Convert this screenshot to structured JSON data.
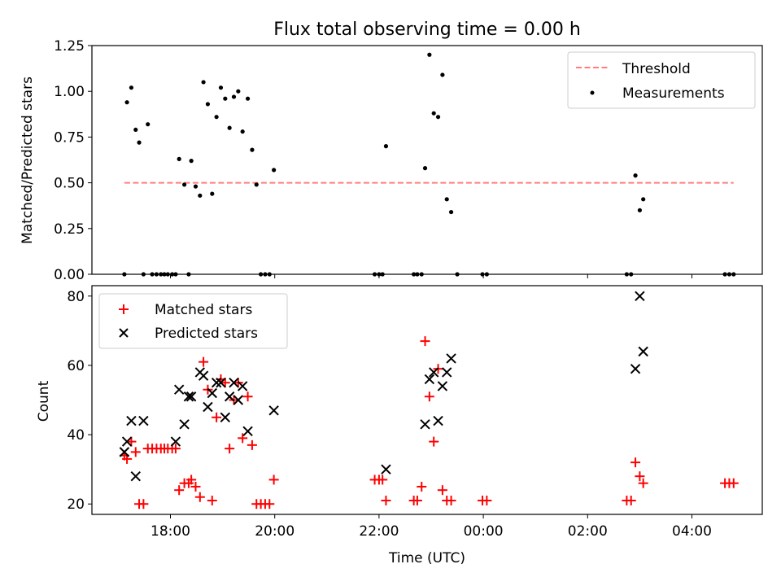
{
  "chart_data": [
    {
      "type": "scatter",
      "title": "Flux total observing time = 0.00 h",
      "xlabel": "",
      "ylabel": "Matched/Predicted stars",
      "ylim": [
        0,
        1.25
      ],
      "yticks": [
        0,
        0.25,
        0.5,
        0.75,
        1.0,
        1.25
      ],
      "ytick_labels": [
        "0.00",
        "0.25",
        "0.50",
        "0.75",
        "1.00",
        "1.25"
      ],
      "grid": false,
      "legend_position": "top-right",
      "threshold": {
        "name": "Threshold",
        "y": 0.5,
        "x_range": [
          "17:07",
          "23:59+4:52"
        ],
        "color": "#ff7f7f"
      },
      "series": [
        {
          "name": "Measurements",
          "color": "#000000",
          "points": [
            [
              "17:07",
              0.0
            ],
            [
              "17:10",
              0.94
            ],
            [
              "17:15",
              1.02
            ],
            [
              "17:20",
              0.79
            ],
            [
              "17:24",
              0.72
            ],
            [
              "17:29",
              0.0
            ],
            [
              "17:34",
              0.82
            ],
            [
              "17:39",
              0.0
            ],
            [
              "17:44",
              0.0
            ],
            [
              "17:49",
              0.0
            ],
            [
              "17:53",
              0.0
            ],
            [
              "17:57",
              0.0
            ],
            [
              "18:02",
              0.0
            ],
            [
              "18:06",
              0.0
            ],
            [
              "18:10",
              0.63
            ],
            [
              "18:16",
              0.49
            ],
            [
              "18:21",
              0.0
            ],
            [
              "18:24",
              0.62
            ],
            [
              "18:29",
              0.48
            ],
            [
              "18:34",
              0.43
            ],
            [
              "18:38",
              1.05
            ],
            [
              "18:43",
              0.93
            ],
            [
              "18:48",
              0.44
            ],
            [
              "18:53",
              0.86
            ],
            [
              "18:58",
              1.02
            ],
            [
              "19:03",
              0.96
            ],
            [
              "19:08",
              0.8
            ],
            [
              "19:13",
              0.97
            ],
            [
              "19:18",
              1.0
            ],
            [
              "19:23",
              0.78
            ],
            [
              "19:29",
              0.96
            ],
            [
              "19:34",
              0.68
            ],
            [
              "19:39",
              0.49
            ],
            [
              "19:44",
              0.0
            ],
            [
              "19:49",
              0.0
            ],
            [
              "19:54",
              0.0
            ],
            [
              "19:59",
              0.57
            ],
            [
              "21:55",
              0.0
            ],
            [
              "22:00",
              0.0
            ],
            [
              "22:04",
              0.0
            ],
            [
              "22:08",
              0.7
            ],
            [
              "22:40",
              0.0
            ],
            [
              "22:44",
              0.0
            ],
            [
              "22:49",
              0.0
            ],
            [
              "22:53",
              0.58
            ],
            [
              "22:58",
              1.2
            ],
            [
              "23:03",
              0.88
            ],
            [
              "23:08",
              0.86
            ],
            [
              "23:13",
              1.09
            ],
            [
              "23:18",
              0.41
            ],
            [
              "23:23",
              0.34
            ],
            [
              "23:30",
              0.0
            ],
            [
              "23:59",
              0.0
            ],
            [
              "24:04",
              0.0
            ],
            [
              "26:45",
              0.0
            ],
            [
              "26:50",
              0.0
            ],
            [
              "26:55",
              0.54
            ],
            [
              "27:00",
              0.35
            ],
            [
              "27:04",
              0.41
            ],
            [
              "28:38",
              0.0
            ],
            [
              "28:43",
              0.0
            ],
            [
              "28:48",
              0.0
            ]
          ]
        }
      ]
    },
    {
      "type": "scatter",
      "title": "",
      "xlabel": "Time (UTC)",
      "ylabel": "Count",
      "ylim": [
        17,
        83
      ],
      "yticks": [
        20,
        40,
        60,
        80
      ],
      "ytick_labels": [
        "20",
        "40",
        "60",
        "80"
      ],
      "grid": false,
      "legend_position": "top-left",
      "xticks": [
        "18:00",
        "20:00",
        "22:00",
        "24:00",
        "26:00",
        "28:00"
      ],
      "xtick_labels": [
        "18:00",
        "20:00",
        "22:00",
        "00:00",
        "02:00",
        "04:00"
      ],
      "series": [
        {
          "name": "Matched stars",
          "marker": "plus",
          "color": "#ff0000",
          "points": [
            [
              "17:07",
              34
            ],
            [
              "17:10",
              33
            ],
            [
              "17:15",
              38
            ],
            [
              "17:20",
              35
            ],
            [
              "17:24",
              20
            ],
            [
              "17:29",
              20
            ],
            [
              "17:34",
              36
            ],
            [
              "17:39",
              36
            ],
            [
              "17:44",
              36
            ],
            [
              "17:49",
              36
            ],
            [
              "17:53",
              36
            ],
            [
              "17:57",
              36
            ],
            [
              "18:02",
              36
            ],
            [
              "18:06",
              36
            ],
            [
              "18:10",
              24
            ],
            [
              "18:16",
              26
            ],
            [
              "18:21",
              26
            ],
            [
              "18:24",
              27
            ],
            [
              "18:29",
              25
            ],
            [
              "18:34",
              22
            ],
            [
              "18:38",
              61
            ],
            [
              "18:43",
              53
            ],
            [
              "18:48",
              21
            ],
            [
              "18:53",
              45
            ],
            [
              "18:58",
              56
            ],
            [
              "19:03",
              55
            ],
            [
              "19:08",
              36
            ],
            [
              "19:13",
              50
            ],
            [
              "19:18",
              55
            ],
            [
              "19:23",
              39
            ],
            [
              "19:29",
              51
            ],
            [
              "19:34",
              37
            ],
            [
              "19:39",
              20
            ],
            [
              "19:44",
              20
            ],
            [
              "19:49",
              20
            ],
            [
              "19:54",
              20
            ],
            [
              "19:59",
              27
            ],
            [
              "21:55",
              27
            ],
            [
              "22:00",
              27
            ],
            [
              "22:04",
              27
            ],
            [
              "22:08",
              21
            ],
            [
              "22:40",
              21
            ],
            [
              "22:44",
              21
            ],
            [
              "22:49",
              25
            ],
            [
              "22:53",
              67
            ],
            [
              "22:58",
              51
            ],
            [
              "23:03",
              38
            ],
            [
              "23:08",
              59
            ],
            [
              "23:13",
              24
            ],
            [
              "23:18",
              21
            ],
            [
              "23:23",
              21
            ],
            [
              "23:59",
              21
            ],
            [
              "24:04",
              21
            ],
            [
              "26:45",
              21
            ],
            [
              "26:50",
              21
            ],
            [
              "26:55",
              32
            ],
            [
              "27:00",
              28
            ],
            [
              "27:04",
              26
            ],
            [
              "28:38",
              26
            ],
            [
              "28:43",
              26
            ],
            [
              "28:48",
              26
            ]
          ]
        },
        {
          "name": "Predicted stars",
          "marker": "x",
          "color": "#000000",
          "points": [
            [
              "17:07",
              35
            ],
            [
              "17:10",
              38
            ],
            [
              "17:15",
              44
            ],
            [
              "17:20",
              28
            ],
            [
              "17:29",
              44
            ],
            [
              "18:06",
              38
            ],
            [
              "18:10",
              53
            ],
            [
              "18:16",
              43
            ],
            [
              "18:21",
              51
            ],
            [
              "18:24",
              51
            ],
            [
              "18:34",
              58
            ],
            [
              "18:38",
              57
            ],
            [
              "18:43",
              48
            ],
            [
              "18:48",
              52
            ],
            [
              "18:53",
              55
            ],
            [
              "18:58",
              55
            ],
            [
              "19:03",
              45
            ],
            [
              "19:08",
              51
            ],
            [
              "19:13",
              55
            ],
            [
              "19:18",
              50
            ],
            [
              "19:23",
              54
            ],
            [
              "19:29",
              41
            ],
            [
              "19:59",
              47
            ],
            [
              "22:08",
              30
            ],
            [
              "22:53",
              43
            ],
            [
              "22:58",
              56
            ],
            [
              "23:03",
              58
            ],
            [
              "23:08",
              44
            ],
            [
              "23:13",
              54
            ],
            [
              "23:18",
              58
            ],
            [
              "23:23",
              62
            ],
            [
              "26:55",
              59
            ],
            [
              "27:00",
              80
            ],
            [
              "27:04",
              64
            ]
          ]
        }
      ]
    }
  ]
}
